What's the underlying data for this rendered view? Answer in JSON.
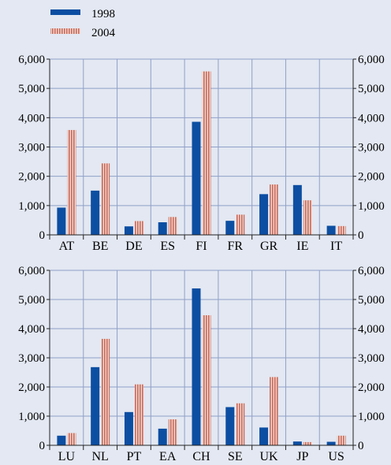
{
  "chart_data": [
    {
      "type": "bar",
      "categories": [
        "AT",
        "BE",
        "DE",
        "ES",
        "FI",
        "FR",
        "GR",
        "IE",
        "IT"
      ],
      "series": [
        {
          "name": "1998",
          "values": [
            930,
            1510,
            290,
            430,
            3860,
            480,
            1390,
            1700,
            310
          ]
        },
        {
          "name": "2004",
          "values": [
            3580,
            2440,
            470,
            610,
            5580,
            690,
            1720,
            1180,
            300
          ]
        }
      ],
      "ylim": [
        0,
        6000
      ],
      "yticks": [
        "0",
        "1,000",
        "2,000",
        "3,000",
        "4,000",
        "5,000",
        "6,000"
      ],
      "grid": true
    },
    {
      "type": "bar",
      "categories": [
        "LU",
        "NL",
        "PT",
        "EA",
        "CH",
        "SE",
        "UK",
        "JP",
        "US"
      ],
      "series": [
        {
          "name": "1998",
          "values": [
            330,
            2680,
            1140,
            570,
            5380,
            1310,
            610,
            130,
            120
          ]
        },
        {
          "name": "2004",
          "values": [
            420,
            3650,
            2090,
            890,
            4460,
            1440,
            2340,
            110,
            330
          ]
        }
      ],
      "ylim": [
        0,
        6000
      ],
      "yticks": [
        "0",
        "1,000",
        "2,000",
        "3,000",
        "4,000",
        "5,000",
        "6,000"
      ],
      "grid": true
    }
  ],
  "legend": [
    {
      "label": "1998",
      "color": "#0c4ea2"
    },
    {
      "label": "2004",
      "color": "#c8695c"
    }
  ],
  "colors": {
    "series1": "#0c4ea2",
    "series2": "#c8695c",
    "background": "#e3e8f2",
    "grid": "#8fa0c8"
  }
}
